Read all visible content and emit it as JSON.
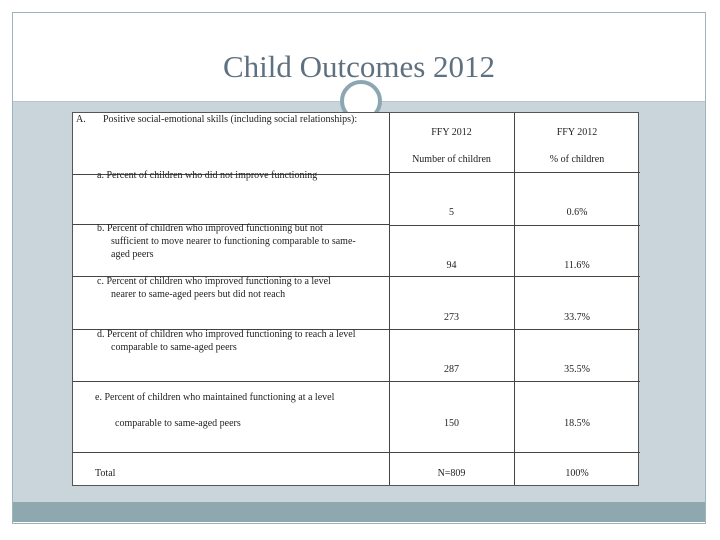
{
  "slide": {
    "title": "Child Outcomes 2012"
  },
  "table": {
    "section_letter": "A.",
    "section_label": "Positive social-emotional skills (including social relationships):",
    "col1_header": "FFY 2012",
    "col2_header": "FFY 2012",
    "col1_sub": "Number of children",
    "col2_sub": "% of children",
    "rows": [
      {
        "label_lines": [
          "a.  Percent of children who did not improve functioning"
        ],
        "count": "5",
        "percent": "0.6%"
      },
      {
        "label_lines": [
          "b.  Percent of children who improved functioning but not",
          "sufficient to move nearer to functioning comparable to same-",
          "aged peers"
        ],
        "count": "94",
        "percent": "11.6%"
      },
      {
        "label_lines": [
          "c.  Percent of children who improved functioning to a level",
          "nearer to same-aged peers but did not reach"
        ],
        "count": "273",
        "percent": "33.7%"
      },
      {
        "label_lines": [
          "d.  Percent of children who improved functioning to reach a level",
          "comparable to same-aged peers"
        ],
        "count": "287",
        "percent": "35.5%"
      },
      {
        "label_lines": [
          "e.   Percent of children who maintained functioning at a level",
          "comparable to same-aged peers"
        ],
        "count": "150",
        "percent": "18.5%"
      }
    ],
    "total_label": "Total",
    "total_count": "N=809",
    "total_percent": "100%"
  }
}
